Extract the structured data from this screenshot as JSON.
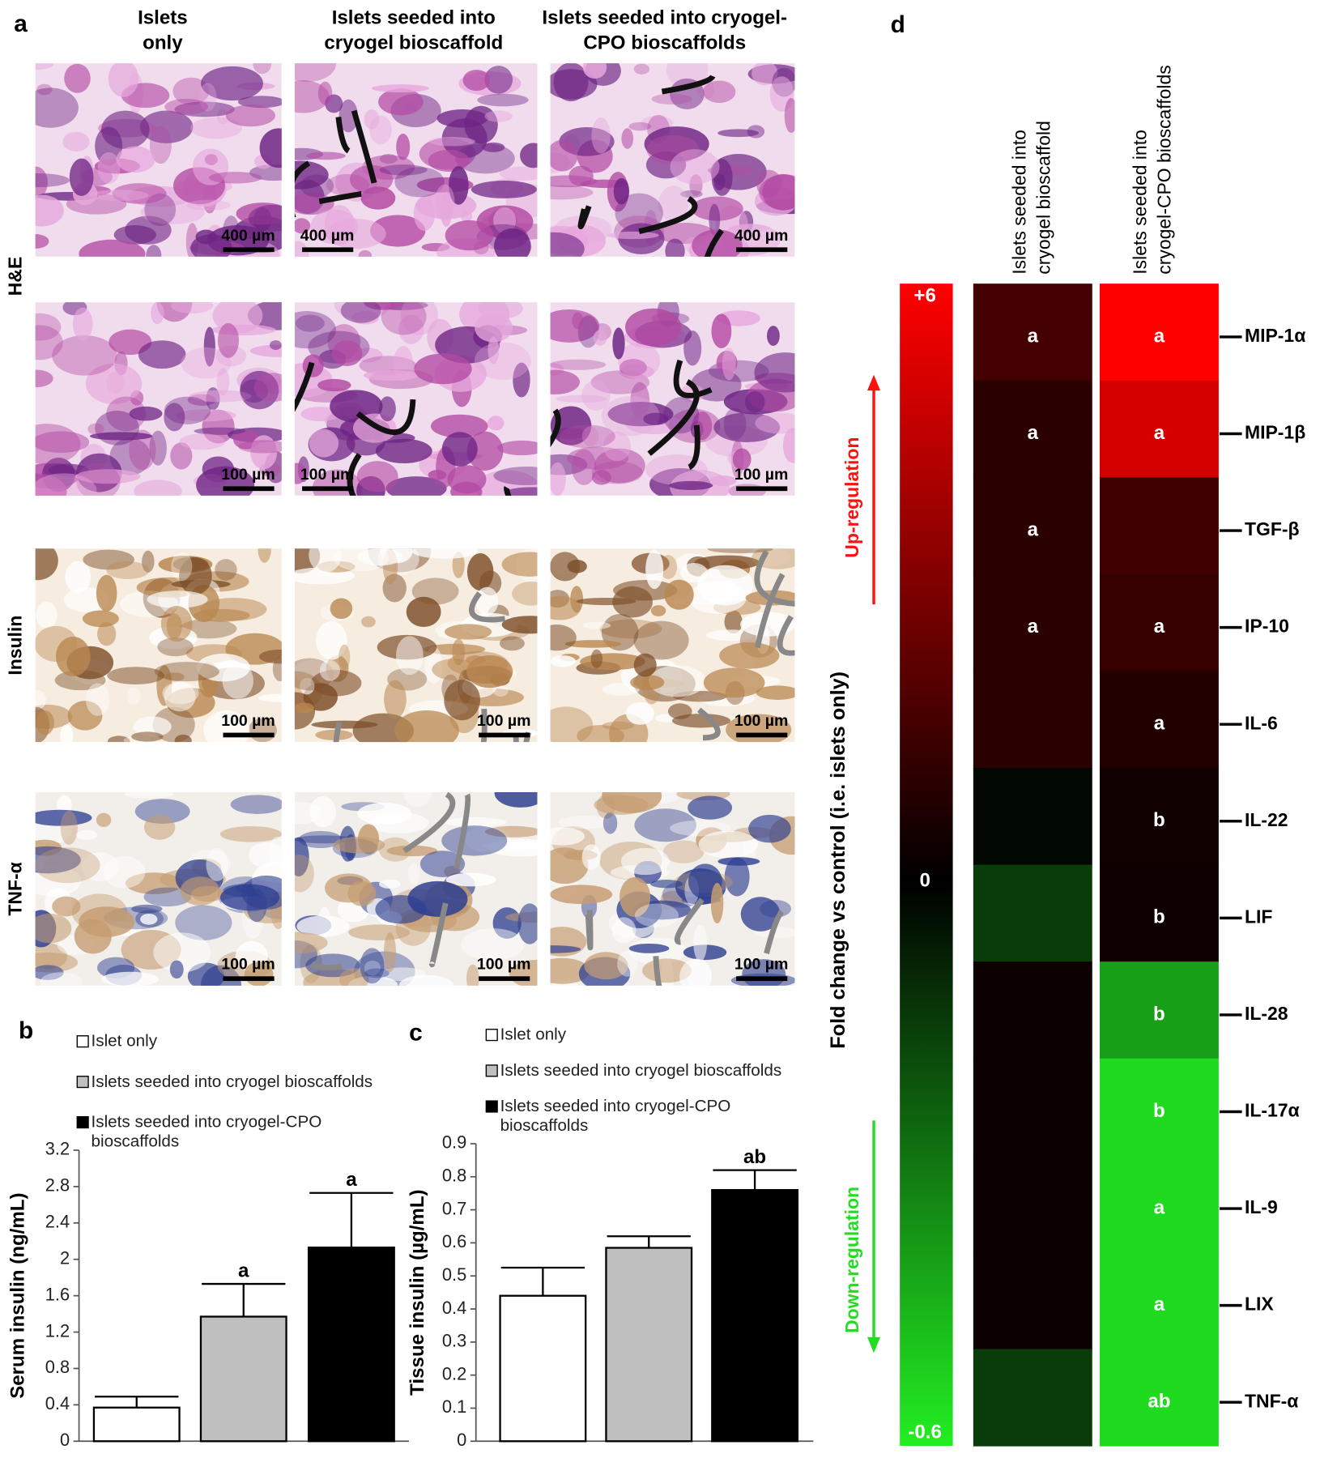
{
  "panel_a": {
    "label": "a",
    "columns": [
      [
        "Islets",
        "only"
      ],
      [
        "Islets seeded into",
        "cryogel bioscaffold"
      ],
      [
        "Islets seeded into cryogel-",
        "CPO bioscaffolds"
      ]
    ],
    "rows": [
      "H&E",
      "Insulin",
      "TNF-α"
    ],
    "scale_bars": [
      [
        "400 µm",
        "400 µm",
        "400 µm"
      ],
      [
        "100 µm",
        "100 µm",
        "100 µm"
      ],
      [
        "100 µm",
        "100 µm",
        "100 µm"
      ],
      [
        "100 µm",
        "100 µm",
        "100 µm"
      ]
    ]
  },
  "chart_data": [
    {
      "type": "bar",
      "panel": "b",
      "ylabel": "Serum insulin (ng/mL)",
      "ylim": [
        0,
        3.2
      ],
      "yticks": [
        0,
        0.4,
        0.8,
        1.2,
        1.6,
        2,
        2.4,
        2.8,
        3.2
      ],
      "series": [
        {
          "name": "Islet only",
          "color": "#ffffff",
          "values": [
            0.37
          ],
          "errors": [
            0.12
          ]
        },
        {
          "name": "Islets seeded into cryogel bioscaffolds",
          "color": "#bfbfbf",
          "values": [
            1.37
          ],
          "errors": [
            0.36
          ],
          "annotation": "a"
        },
        {
          "name": "Islets seeded into cryogel-CPO bioscaffolds",
          "color": "#000000",
          "values": [
            2.13
          ],
          "errors": [
            0.6
          ],
          "annotation": "a"
        }
      ]
    },
    {
      "type": "bar",
      "panel": "c",
      "ylabel": "Tissue insulin (µg/mL)",
      "ylim": [
        0,
        0.9
      ],
      "yticks": [
        0,
        0.1,
        0.2,
        0.3,
        0.4,
        0.5,
        0.6,
        0.7,
        0.8,
        0.9
      ],
      "series": [
        {
          "name": "Islet only",
          "color": "#ffffff",
          "values": [
            0.44
          ],
          "errors": [
            0.085
          ]
        },
        {
          "name": "Islets seeded into cryogel bioscaffolds",
          "color": "#bfbfbf",
          "values": [
            0.585
          ],
          "errors": [
            0.035
          ]
        },
        {
          "name": "Islets seeded into cryogel-CPO bioscaffolds",
          "color": "#000000",
          "values": [
            0.76
          ],
          "errors": [
            0.06
          ],
          "annotation": "ab"
        }
      ]
    },
    {
      "type": "heatmap",
      "panel": "d",
      "columns": [
        [
          "Islets seeded into",
          "cryogel bioscaffold"
        ],
        [
          "Islets seeded into",
          "cryogel-CPO bioscaffolds"
        ]
      ],
      "rows": [
        "MIP-1α",
        "MIP-1β",
        "TGF-β",
        "IP-10",
        "IL-6",
        "IL-22",
        "LIF",
        "IL-28",
        "IL-17α",
        "IL-9",
        "LIX",
        "TNF-α"
      ],
      "values": [
        [
          1.6,
          1.0,
          1.0,
          1.0,
          1.0,
          -0.02,
          -0.15,
          0.3,
          0.3,
          0.3,
          0.3,
          -0.15
        ],
        [
          6,
          5,
          1.5,
          1.3,
          0.8,
          0.4,
          0.35,
          -0.4,
          -0.55,
          -0.55,
          -0.55,
          -0.55
        ]
      ],
      "letters": [
        [
          "a",
          "a",
          "a",
          "a",
          null,
          null,
          null,
          null,
          null,
          null,
          null,
          null
        ],
        [
          "a",
          "a",
          null,
          "a",
          "a",
          "b",
          "b",
          "b",
          "b",
          "a",
          "a",
          "ab"
        ]
      ],
      "colorbar": {
        "label": "Fold change vs control (i.e. islets only)",
        "range": [
          -0.6,
          6
        ],
        "ticks": [
          {
            "value": 6,
            "label": "+6"
          },
          0,
          -0.6
        ],
        "colors": [
          "#22ee22",
          "#000000",
          "#ff0000"
        ]
      },
      "annotations": [
        {
          "text": "Up-regulation",
          "color": "#ff1111"
        },
        {
          "text": "Down-regulation",
          "color": "#22dd22"
        }
      ]
    }
  ]
}
